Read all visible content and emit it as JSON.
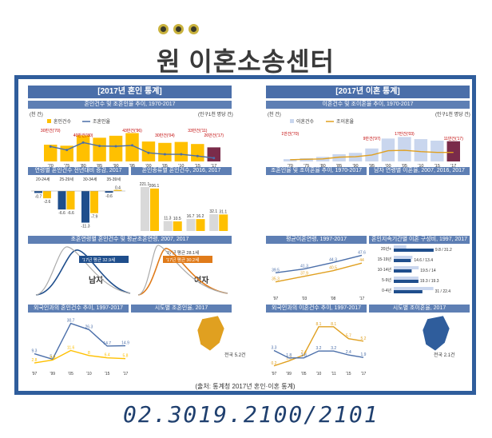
{
  "header": {
    "title": "원 이혼소송센터"
  },
  "left_panel": {
    "title": "[2017년 혼인 통계]",
    "subtitles": [
      "혼인건수 및 조혼인율 추이, 1970-2017",
      "연령별 혼인건수 전년대비 증감, 2017",
      "혼인종류별 혼인건수, 2016, 2017",
      "초혼연령별 혼인건수 및 평균초혼연령, 2007, 2017",
      "외국인과의 혼인건수 추이, 1997-2017",
      "시도별 조혼인율, 2017"
    ],
    "labels": {
      "unit_cases": "(천 건)",
      "unit_rate": "(인구1천 명당 건)",
      "legend_count": "혼인건수",
      "legend_rate": "조혼인율",
      "male": "남자",
      "female": "여자",
      "y07": "'07년",
      "y17": "'17년",
      "avg_male": "'17년 평균 32.9세",
      "avg_male_07": "'07년 평균 31.1세",
      "avg_female": "'17년 평균 30.2세",
      "avg_female_07": "'07년 평균 28.1세",
      "foreign_wife": "한국남자+외국여자",
      "foreign_husband": "한국여자+외국남자",
      "national": "전국 5.2건",
      "y16": "'16년"
    }
  },
  "right_panel": {
    "title": "[2017년 이혼 통계]",
    "subtitles": [
      "이혼건수 및 조이혼율 추이, 1970-2017",
      "조혼인율 및 조이혼율 추이, 1970-2017",
      "남자 연령별 이혼율, 2007, 2016, 2017",
      "평균이혼연령, 1997-2017",
      "혼인지속기간별 이혼 구성비, 1997, 2017",
      "외국인과의 이혼건수 추이, 1997-2017",
      "시도별 조이혼율, 2017"
    ],
    "labels": {
      "unit_cases": "(천 건)",
      "unit_rate": "(인구1천 명당 건)",
      "legend_count": "이혼건수",
      "legend_rate": "조이혼율",
      "male": "남자",
      "female": "여자",
      "y97": "'97년",
      "y17": "'17년",
      "y07": "'07년",
      "y16": "'16년",
      "national": "전국 2.1건",
      "dur_20": "20년+",
      "dur_15": "15-19년",
      "dur_10": "10-14년",
      "dur_5": "5-9년",
      "dur_0": "0-4년"
    }
  },
  "source": "(출처: 통계청 2017년 혼인·이혼 통계)",
  "contact": {
    "phone": "02.3019.2100/2101"
  },
  "colors": {
    "frame": "#2f5d9c",
    "panel_title": "#4a6ea9",
    "marriage_bar": "#ffc000",
    "divorce_bar": "#f0c040",
    "line_blue": "#4a6ea9"
  },
  "chart_data": [
    {
      "type": "bar",
      "title": "혼인건수 및 조혼인율 추이, 1970-2017",
      "x": [
        "'70",
        "'75",
        "'80",
        "'85",
        "'90",
        "'95",
        "'00",
        "'05",
        "'10",
        "'15",
        "'17"
      ],
      "series": [
        {
          "name": "혼인건수",
          "values": [
            295,
            283,
            403,
            376,
            399,
            430,
            332,
            316,
            327,
            303,
            264
          ]
        },
        {
          "name": "조혼인율",
          "values": [
            9.2,
            8.0,
            10.6,
            9.4,
            9.3,
            9.6,
            7.0,
            6.5,
            6.5,
            5.9,
            5.2
          ]
        }
      ],
      "annotations": [
        "30만건('70)",
        "40만건('80)",
        "43만건('96)",
        "30만건('04)",
        "33만건('11)",
        "26만건('17)"
      ],
      "ylim": [
        100,
        500
      ]
    },
    {
      "type": "bar",
      "title": "연령별 혼인건수 전년대비 증감, 2017",
      "categories": [
        "20-24세",
        "25-29세",
        "30-34세",
        "35-39세"
      ],
      "series": [
        {
          "name": "남자",
          "values": [
            -0.7,
            -6.6,
            -11.3,
            -0.6
          ]
        },
        {
          "name": "여자",
          "values": [
            -2.6,
            -6.6,
            -7.9,
            0.4
          ]
        }
      ]
    },
    {
      "type": "bar",
      "title": "혼인종류별 혼인건수, 2016, 2017",
      "categories": [
        "남(초)+여(초)",
        "남(재)+여(초)",
        "남(초)+여(재)",
        "남(재)+여(재)"
      ],
      "series": [
        {
          "name": "'16년",
          "values": [
            221.1,
            11.3,
            16.7,
            32.1
          ]
        },
        {
          "name": "'17년",
          "values": [
            206.1,
            10.5,
            16.2,
            31.1
          ]
        }
      ]
    },
    {
      "type": "line",
      "title": "외국인과의 혼인건수 추이, 1997-2017",
      "x": [
        "'97",
        "'99",
        "'05",
        "'10",
        "'15",
        "'17"
      ],
      "series": [
        {
          "name": "한국남자+외국여자",
          "values": [
            9.3,
            5.4,
            30.7,
            26.3,
            14.7,
            14.9
          ]
        },
        {
          "name": "한국여자+외국남자",
          "values": [
            2.8,
            4.8,
            11.6,
            8.0,
            6.4,
            5.8
          ]
        }
      ]
    },
    {
      "type": "bar",
      "title": "이혼건수 및 조이혼율 추이, 1970-2017",
      "x": [
        "'70",
        "'75",
        "'80",
        "'85",
        "'90",
        "'95",
        "'00",
        "'05",
        "'10",
        "'15",
        "'17"
      ],
      "series": [
        {
          "name": "이혼건수",
          "values": [
            12,
            17,
            24,
            38,
            45,
            68,
            120,
            128,
            117,
            109,
            106
          ]
        },
        {
          "name": "조이혼율",
          "values": [
            0.4,
            0.5,
            0.6,
            1.0,
            1.1,
            1.5,
            2.5,
            2.6,
            2.3,
            2.1,
            2.1
          ]
        }
      ],
      "annotations": [
        "1만건('70)",
        "9만건('97)",
        "17만건('03)",
        "11만건('17)"
      ]
    },
    {
      "type": "line",
      "title": "평균이혼연령, 1997-2017",
      "x": [
        "'97",
        "'03",
        "'08",
        "'17"
      ],
      "series": [
        {
          "name": "남자",
          "values": [
            39.5,
            41.3,
            44.3,
            47.6
          ]
        },
        {
          "name": "여자",
          "values": [
            35.3,
            37.9,
            40.5,
            44.0
          ]
        }
      ]
    },
    {
      "type": "bar",
      "title": "혼인지속기간별 이혼 구성비, 1997, 2017",
      "categories": [
        "20년+",
        "15-19년",
        "10-14년",
        "5-9년",
        "0-4년"
      ],
      "series": [
        {
          "name": "'97년",
          "values": [
            9.8,
            14.6,
            19.5,
            19.3,
            31.0
          ]
        },
        {
          "name": "'17년",
          "values": [
            31.2,
            13.4,
            14.0,
            19.3,
            22.4
          ]
        }
      ]
    },
    {
      "type": "line",
      "title": "외국인과의 이혼건수 추이, 1997-2017",
      "x": [
        "'97",
        "'99",
        "'05",
        "'10",
        "'11",
        "'15",
        "'17"
      ],
      "series": [
        {
          "name": "한국남자+외국여자",
          "values": [
            0.2,
            1.2,
            2.4,
            8.1,
            8.1,
            5.7,
            5.2
          ]
        },
        {
          "name": "한국여자+외국남자",
          "values": [
            3.3,
            1.8,
            1.8,
            3.2,
            3.2,
            2.4,
            1.9
          ]
        }
      ]
    }
  ]
}
